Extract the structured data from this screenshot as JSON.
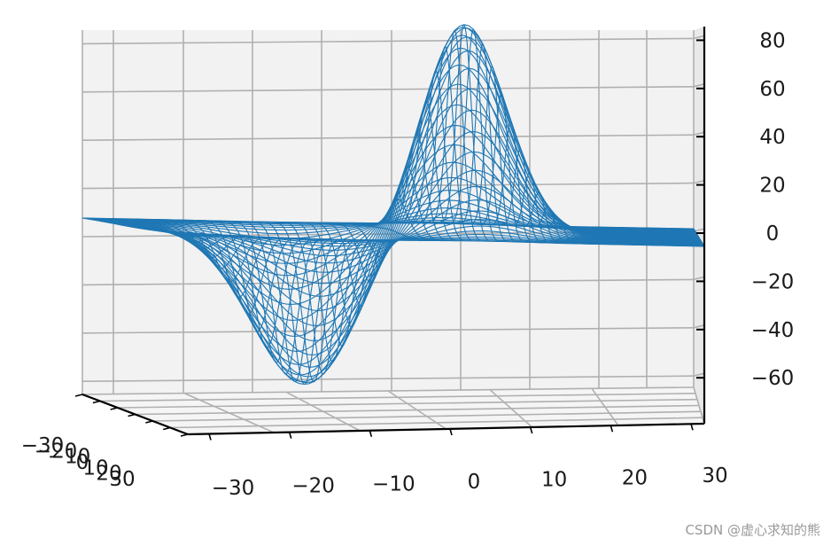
{
  "chart_data": {
    "type": "surface",
    "function": "wireframe surface, antisymmetric peak/trough along the front axis",
    "x_ticks": [
      "−30",
      "−20",
      "−10",
      "0",
      "10",
      "20",
      "30"
    ],
    "y_ticks": [
      "−30",
      "−20",
      "−10",
      "0",
      "10",
      "20",
      "30"
    ],
    "z_ticks": [
      "80",
      "60",
      "40",
      "20",
      "0",
      "−20",
      "−40",
      "−60"
    ],
    "x_range": [
      -30,
      30
    ],
    "y_range": [
      -30,
      30
    ],
    "z_range": [
      -65,
      87
    ],
    "peak": {
      "value": 87
    },
    "trough": {
      "value": -64
    },
    "series": [
      {
        "values": "wireframe mesh",
        "color": "#1f77b4"
      }
    ],
    "grid": true,
    "view": "low elevation, nearly edge-on"
  },
  "watermark": "CSDN @虚心求知的熊"
}
